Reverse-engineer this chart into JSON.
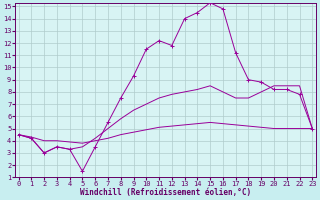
{
  "bg_color": "#c8eef0",
  "plot_bg": "#d8f4f4",
  "grid_color": "#b0cccc",
  "line_color": "#990099",
  "axis_color": "#660066",
  "xlim_min": 0,
  "xlim_max": 23,
  "ylim_min": 1,
  "ylim_max": 15,
  "xticks": [
    0,
    1,
    2,
    3,
    4,
    5,
    6,
    7,
    8,
    9,
    10,
    11,
    12,
    13,
    14,
    15,
    16,
    17,
    18,
    19,
    20,
    21,
    22,
    23
  ],
  "yticks": [
    1,
    2,
    3,
    4,
    5,
    6,
    7,
    8,
    9,
    10,
    11,
    12,
    13,
    14,
    15
  ],
  "xlabel": "Windchill (Refroidissement éolien,°C)",
  "tick_fontsize": 5.0,
  "label_fontsize": 5.5,
  "series1_x": [
    0,
    1,
    2,
    3,
    4,
    5,
    6,
    7,
    8,
    9,
    10,
    11,
    12,
    13,
    14,
    15,
    16,
    17,
    18,
    19,
    20,
    21,
    22,
    23
  ],
  "series1_y": [
    4.5,
    4.2,
    3.0,
    3.5,
    3.3,
    1.5,
    3.5,
    5.5,
    7.5,
    9.3,
    11.5,
    12.2,
    11.8,
    14.0,
    14.5,
    15.3,
    14.8,
    11.2,
    9.0,
    8.8,
    8.2,
    8.2,
    7.8,
    5.0
  ],
  "series2_x": [
    0,
    1,
    2,
    3,
    4,
    5,
    6,
    7,
    8,
    9,
    10,
    11,
    12,
    13,
    14,
    15,
    16,
    17,
    18,
    19,
    20,
    21,
    22,
    23
  ],
  "series2_y": [
    4.5,
    4.2,
    3.0,
    3.5,
    3.3,
    3.5,
    4.2,
    5.0,
    5.8,
    6.5,
    7.0,
    7.5,
    7.8,
    8.0,
    8.2,
    8.5,
    8.0,
    7.5,
    7.5,
    8.0,
    8.5,
    8.5,
    8.5,
    5.0
  ],
  "series3_x": [
    0,
    1,
    2,
    3,
    4,
    5,
    6,
    7,
    8,
    9,
    10,
    11,
    12,
    13,
    14,
    15,
    16,
    17,
    18,
    19,
    20,
    21,
    22,
    23
  ],
  "series3_y": [
    4.5,
    4.3,
    4.0,
    4.0,
    3.9,
    3.8,
    4.0,
    4.2,
    4.5,
    4.7,
    4.9,
    5.1,
    5.2,
    5.3,
    5.4,
    5.5,
    5.4,
    5.3,
    5.2,
    5.1,
    5.0,
    5.0,
    5.0,
    5.0
  ]
}
